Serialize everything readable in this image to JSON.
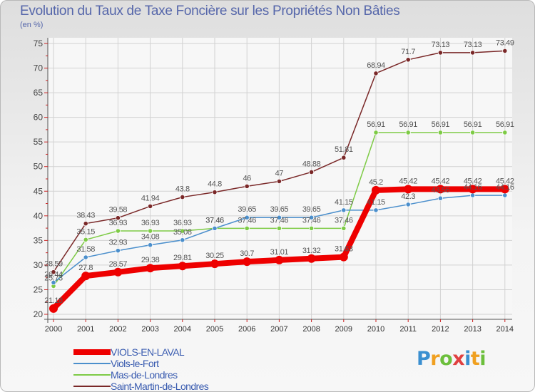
{
  "header": {
    "title": "Evolution du Taux de Taxe Foncière sur les Propriétés Non Bâties",
    "unit": "(en %)"
  },
  "chart_data": {
    "type": "line",
    "title": "Evolution du Taux de Taxe Foncière sur les Propriétés Non Bâties",
    "ylabel": "(en %)",
    "xlabel": "",
    "ylim": [
      20,
      75
    ],
    "yticks": [
      20,
      25,
      30,
      35,
      40,
      45,
      50,
      55,
      60,
      65,
      70,
      75
    ],
    "grid": true,
    "legend_position": "bottom-left",
    "categories": [
      "2000",
      "2001",
      "2002",
      "2003",
      "2004",
      "2005",
      "2006",
      "2007",
      "2008",
      "2009",
      "2010",
      "2011",
      "2012",
      "2013",
      "2014"
    ],
    "series": [
      {
        "name": "Saint-Martin-de-Londres",
        "color": "#7a2828",
        "values": [
          28.59,
          38.43,
          39.58,
          41.94,
          43.8,
          44.8,
          46,
          47,
          48.88,
          51.81,
          68.94,
          71.7,
          73.13,
          73.13,
          73.49
        ],
        "labels": [
          "28.59",
          "38.43",
          "39.58",
          "41.94",
          "43.8",
          "44.8",
          "46",
          "47",
          "48.88",
          "51.81",
          "68.94",
          "71.7",
          "73.13",
          "73.13",
          "73.49"
        ]
      },
      {
        "name": "Mas-de-Londres",
        "color": "#7ecb46",
        "values": [
          25.73,
          35.15,
          36.93,
          36.93,
          36.93,
          37.46,
          37.46,
          37.46,
          37.46,
          37.46,
          56.91,
          56.91,
          56.91,
          56.91,
          56.91
        ],
        "labels": [
          "25.73",
          "35.15",
          "36.93",
          "36.93",
          "36.93",
          "37.46",
          "37.46",
          "37.46",
          "37.46",
          "37.46",
          "56.91",
          "56.91",
          "56.91",
          "56.91",
          "56.91"
        ]
      },
      {
        "name": "Viols-le-Fort",
        "color": "#4b8fcc",
        "values": [
          26.44,
          31.58,
          32.93,
          34.08,
          35.08,
          37.46,
          39.65,
          39.65,
          39.65,
          41.15,
          41.15,
          42.3,
          43.56,
          44.16,
          44.16
        ],
        "labels": [
          "26.44",
          "31.58",
          "32.93",
          "34.08",
          "35.08",
          "37.46",
          "39.65",
          "39.65",
          "39.65",
          "41.15",
          "41.15",
          "42.3",
          "43.56",
          "44.16",
          "44.16"
        ]
      },
      {
        "name": "VIOLS-EN-LAVAL",
        "color": "#ee0000",
        "values": [
          21.18,
          27.8,
          28.57,
          29.38,
          29.81,
          30.25,
          30.7,
          31.01,
          31.32,
          31.63,
          45.2,
          45.42,
          45.42,
          45.42,
          45.42
        ],
        "labels": [
          "21.18",
          "27.8",
          "28.57",
          "29.38",
          "29.81",
          "30.25",
          "30.7",
          "31.01",
          "31.32",
          "31.63",
          "45.2",
          "45.42",
          "45.42",
          "45.42",
          "45.42"
        ]
      }
    ]
  },
  "legend": {
    "items": [
      {
        "label": "VIOLS-EN-LAVAL",
        "color": "#ee0000"
      },
      {
        "label": "Viols-le-Fort",
        "color": "#4b8fcc"
      },
      {
        "label": "Mas-de-Londres",
        "color": "#7ecb46"
      },
      {
        "label": "Saint-Martin-de-Londres",
        "color": "#7a2828"
      }
    ]
  },
  "logo": {
    "parts": [
      {
        "char": "P",
        "color": "#3a8fd0"
      },
      {
        "char": "r",
        "color": "#f0a020"
      },
      {
        "char": "o",
        "color": "#6cbf3c"
      },
      {
        "char": "x",
        "color": "#e04040"
      },
      {
        "char": "i",
        "color": "#3a8fd0"
      },
      {
        "char": "t",
        "color": "#f0a020"
      },
      {
        "char": "i",
        "color": "#6cbf3c"
      }
    ]
  }
}
